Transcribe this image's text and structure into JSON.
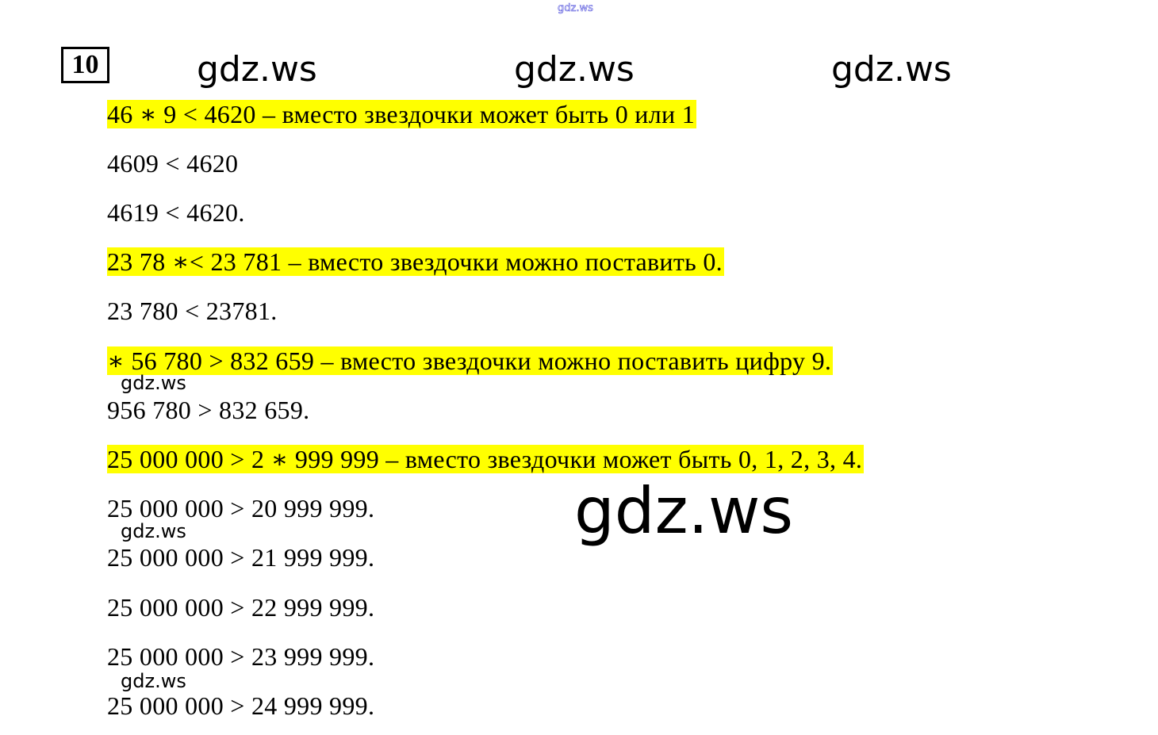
{
  "header": {
    "site_watermark_top": "gdz.ws",
    "task_number": "10",
    "watermarks_row": [
      "gdz.ws",
      "gdz.ws",
      "gdz.ws"
    ]
  },
  "lines": [
    {
      "text": "46 ∗ 9 < 4620 – вместо звездочки может быть 0 или 1",
      "highlight": true
    },
    {
      "text": "4609 < 4620",
      "highlight": false
    },
    {
      "text": "4619 < 4620.",
      "highlight": false
    },
    {
      "text": "23 78 ∗< 23 781 – вместо звездочки можно поставить 0.",
      "highlight": true
    },
    {
      "text": "23 780 < 23781.",
      "highlight": false
    },
    {
      "text": "∗ 56 780 > 832 659 – вместо звездочки можно поставить цифру 9.",
      "highlight": true
    },
    {
      "text": "956 780 > 832 659.",
      "highlight": false
    },
    {
      "text": "25 000 000 > 2 ∗ 999 999 – вместо звездочки может быть 0, 1, 2, 3, 4.",
      "highlight": true
    },
    {
      "text": "25 000 000 > 20 999 999.",
      "highlight": false
    },
    {
      "text": "25 000 000 > 21 999 999.",
      "highlight": false
    },
    {
      "text": "25 000 000 > 22 999 999.",
      "highlight": false
    },
    {
      "text": "25 000 000 > 23 999 999.",
      "highlight": false
    },
    {
      "text": "25 000 000 > 24 999 999.",
      "highlight": false
    }
  ],
  "watermarks_small": [
    "gdz.ws",
    "gdz.ws",
    "gdz.ws"
  ],
  "watermark_large": "gdz.ws",
  "colors": {
    "highlight": "#ffff00",
    "top_watermark": "#5555dd"
  }
}
